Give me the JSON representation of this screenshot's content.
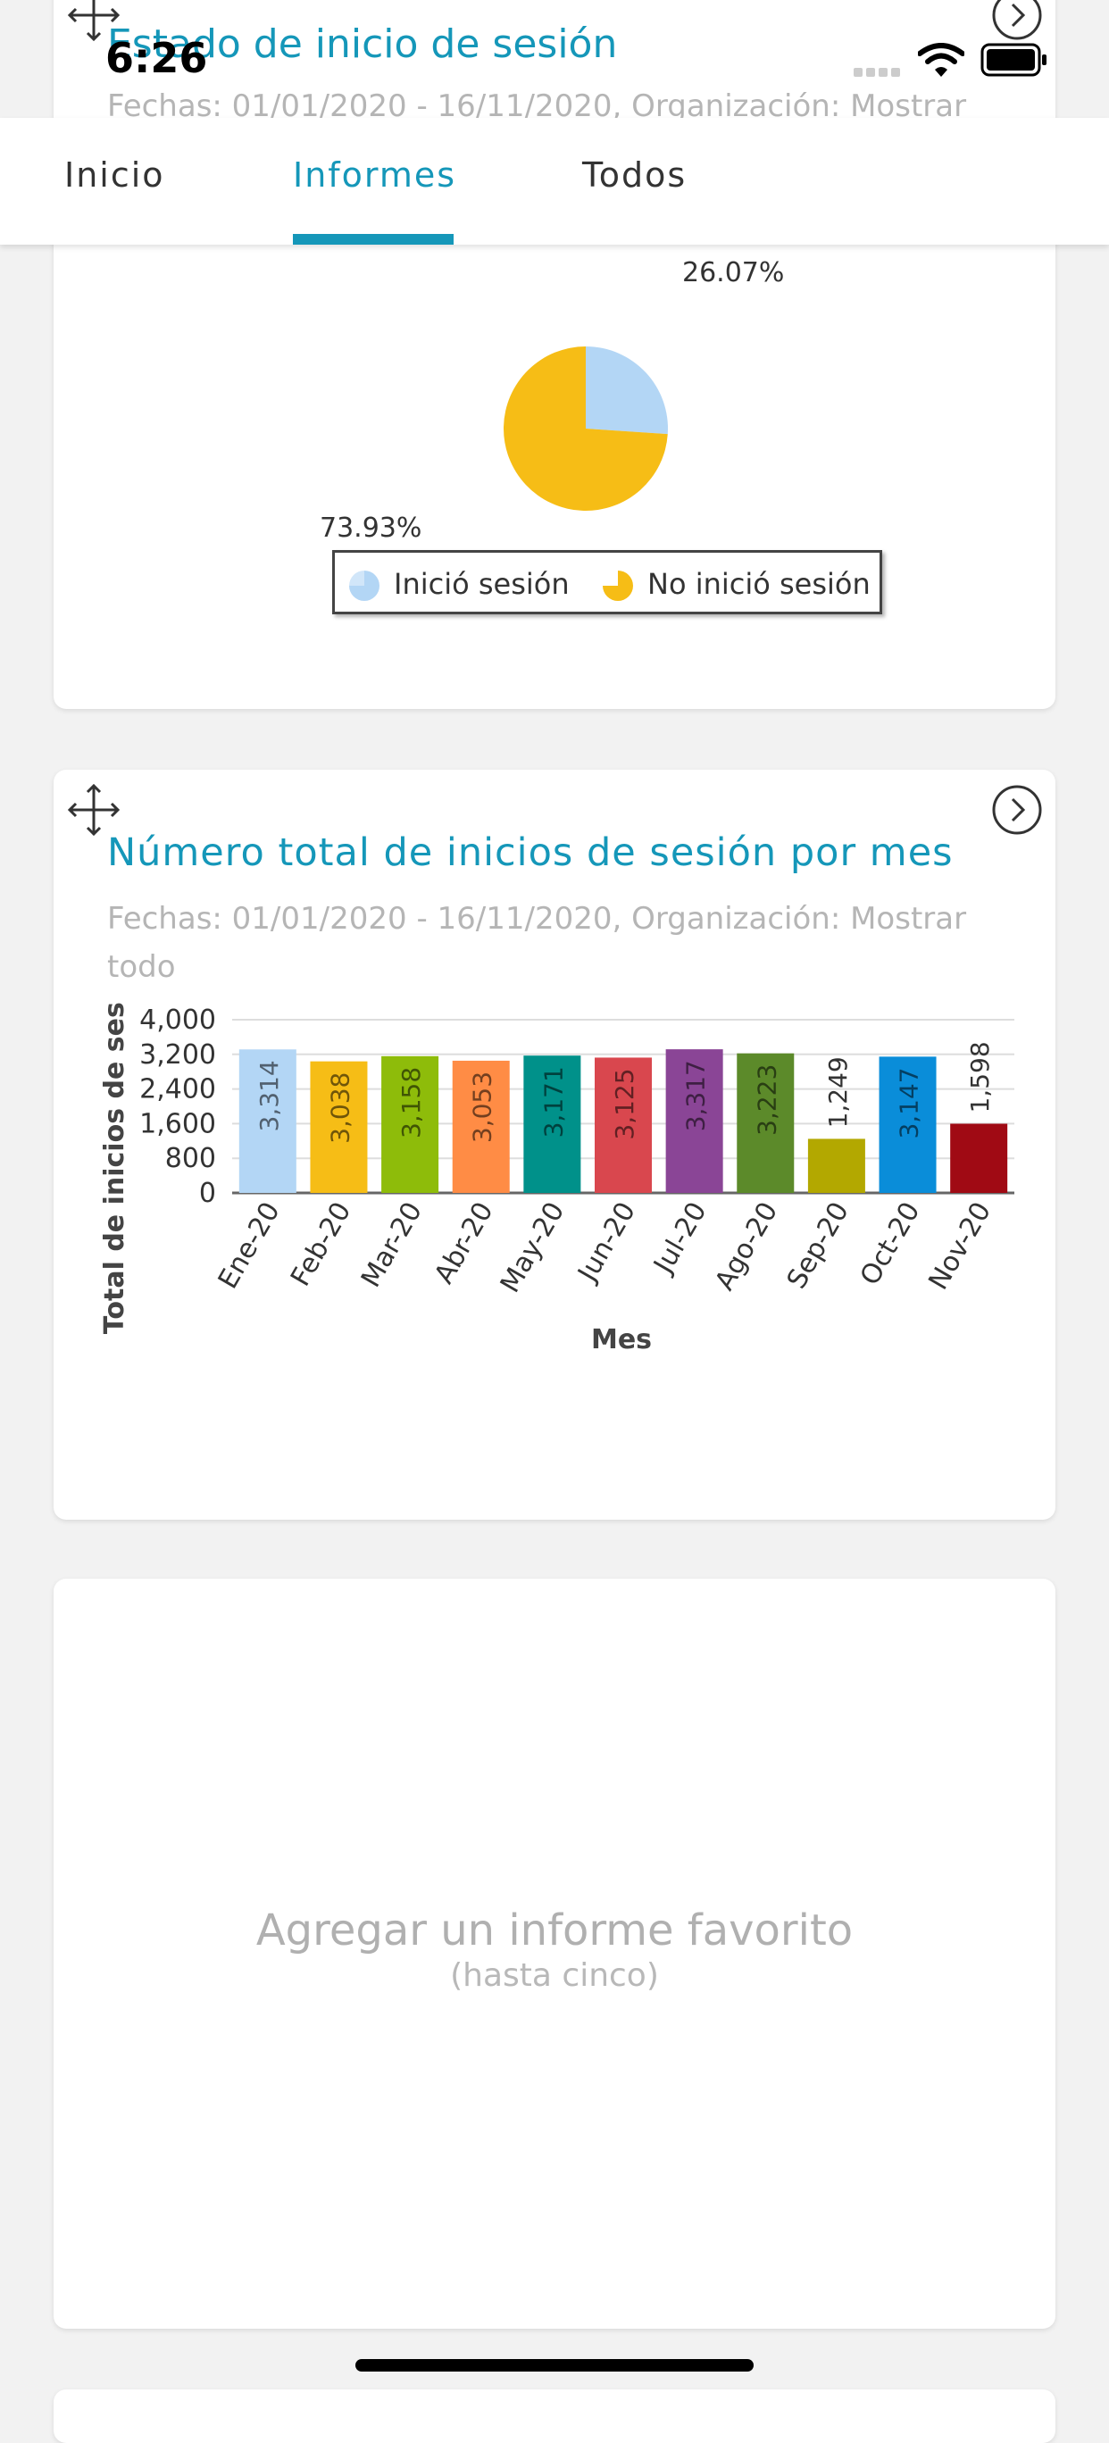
{
  "status_bar": {
    "time": "6:26"
  },
  "tabs": [
    {
      "label": "Inicio",
      "active": false
    },
    {
      "label": "Informes",
      "active": true
    },
    {
      "label": "Todos",
      "active": false
    }
  ],
  "login_status_card": {
    "title": "Estado de inicio de sesión",
    "subtitle": "Fechas: 01/01/2020 - 16/11/2020, Organización: Mostrar",
    "pie_labels": {
      "logged_in": "26.07%",
      "not_logged_in": "73.93%"
    },
    "legend": [
      {
        "label": "Inició sesión",
        "color": "#b3d6f5"
      },
      {
        "label": "No inició sesión",
        "color": "#f6bd16"
      }
    ]
  },
  "monthly_logins_card": {
    "title": "Número total de inicios de sesión por mes",
    "subtitle_line1": "Fechas: 01/01/2020 - 16/11/2020, Organización: Mostrar",
    "subtitle_line2": "todo"
  },
  "chart_data": [
    {
      "type": "pie",
      "labels": [
        "Inició sesión",
        "No inició sesión"
      ],
      "values": [
        26.07,
        73.93
      ],
      "colors": [
        "#b3d6f5",
        "#f6bd16"
      ],
      "legend_position": "bottom"
    },
    {
      "type": "bar",
      "categories": [
        "Ene-20",
        "Feb-20",
        "Mar-20",
        "Abr-20",
        "May-20",
        "Jun-20",
        "Jul-20",
        "Ago-20",
        "Sep-20",
        "Oct-20",
        "Nov-20"
      ],
      "values": [
        3314,
        3038,
        3158,
        3053,
        3171,
        3125,
        3317,
        3223,
        1249,
        3147,
        1598
      ],
      "value_labels": [
        "3,314",
        "3,038",
        "3,158",
        "3,053",
        "3,171",
        "3,125",
        "3,317",
        "3,223",
        "1,249",
        "3,147",
        "1,598"
      ],
      "colors": [
        "#b3d6f5",
        "#f6bd16",
        "#8ebc0a",
        "#ff8c45",
        "#00918a",
        "#d9474e",
        "#8a4596",
        "#5c8a2a",
        "#b3a800",
        "#0a8dd9",
        "#a00a14"
      ],
      "xlabel": "Mes",
      "ylabel": "Total de inicios de sesión",
      "ylim": [
        0,
        4000
      ],
      "yticks": [
        0,
        800,
        1600,
        2400,
        3200,
        4000
      ],
      "ytick_labels": [
        "0",
        "800",
        "1,600",
        "2,400",
        "3,200",
        "4,000"
      ],
      "grid": true
    }
  ],
  "favorite_card": {
    "title": "Agregar un informe favorito",
    "subtitle": "(hasta cinco)"
  }
}
